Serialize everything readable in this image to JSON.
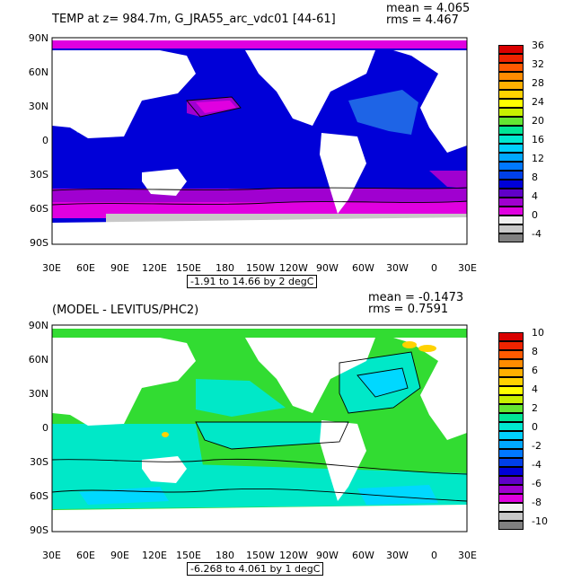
{
  "panel1": {
    "title": "TEMP at z= 984.7m, G_JRA55_arc_vdc01 [44-61]",
    "mean": "mean = 4.065",
    "rms": "rms = 4.467",
    "range": "-1.91 to 14.66 by 2 degC",
    "colorbar_labels": [
      "36",
      "32",
      "28",
      "24",
      "20",
      "16",
      "12",
      "8",
      "4",
      "0",
      "-4"
    ],
    "colorbar_colors": [
      "#d90000",
      "#ee2400",
      "#ff5a00",
      "#ff8c00",
      "#ffb000",
      "#ffd200",
      "#ffff00",
      "#c8f000",
      "#64e632",
      "#00e696",
      "#00e8d0",
      "#00d0ff",
      "#00a8ff",
      "#0078ff",
      "#0040e8",
      "#0000d8",
      "#6000c8",
      "#a000d0",
      "#e000e0",
      "#f0f0f0",
      "#c8c8c8",
      "#808080"
    ]
  },
  "panel2": {
    "title": "(MODEL - LEVITUS/PHC2)",
    "mean": "mean = -0.1473",
    "rms": "rms = 0.7591",
    "range": "-6.268 to 4.061 by 1 degC",
    "colorbar_labels": [
      "10",
      "8",
      "6",
      "4",
      "2",
      "0",
      "-2",
      "-4",
      "-6",
      "-8",
      "-10"
    ],
    "colorbar_colors": [
      "#d90000",
      "#ee2400",
      "#ff5a00",
      "#ff8c00",
      "#ffb000",
      "#ffd200",
      "#ffff00",
      "#c8f000",
      "#64e632",
      "#00e696",
      "#00e8d0",
      "#00d0ff",
      "#00a8ff",
      "#0078ff",
      "#0040e8",
      "#0000d8",
      "#6000c8",
      "#a000d0",
      "#e000e0",
      "#f0f0f0",
      "#c8c8c8",
      "#808080"
    ]
  },
  "axes": {
    "lat_ticks": [
      "90N",
      "60N",
      "30N",
      "0",
      "30S",
      "60S",
      "90S"
    ],
    "lon_ticks": [
      "30E",
      "60E",
      "90E",
      "120E",
      "150E",
      "180",
      "150W",
      "120W",
      "90W",
      "60W",
      "30W",
      "0",
      "30E"
    ]
  },
  "colors": {
    "panel1_deep": "#0000d8",
    "panel1_mid_blue": "#1e64e6",
    "panel1_purple": "#a000d0",
    "panel1_magenta": "#e000e0",
    "panel1_gray": "#c8c8c8",
    "panel2_green": "#32dc32",
    "panel2_cyan": "#00e8c8",
    "panel2_lightcyan": "#00d8ff",
    "panel2_blue": "#0078ff",
    "land": "#ffffff"
  }
}
